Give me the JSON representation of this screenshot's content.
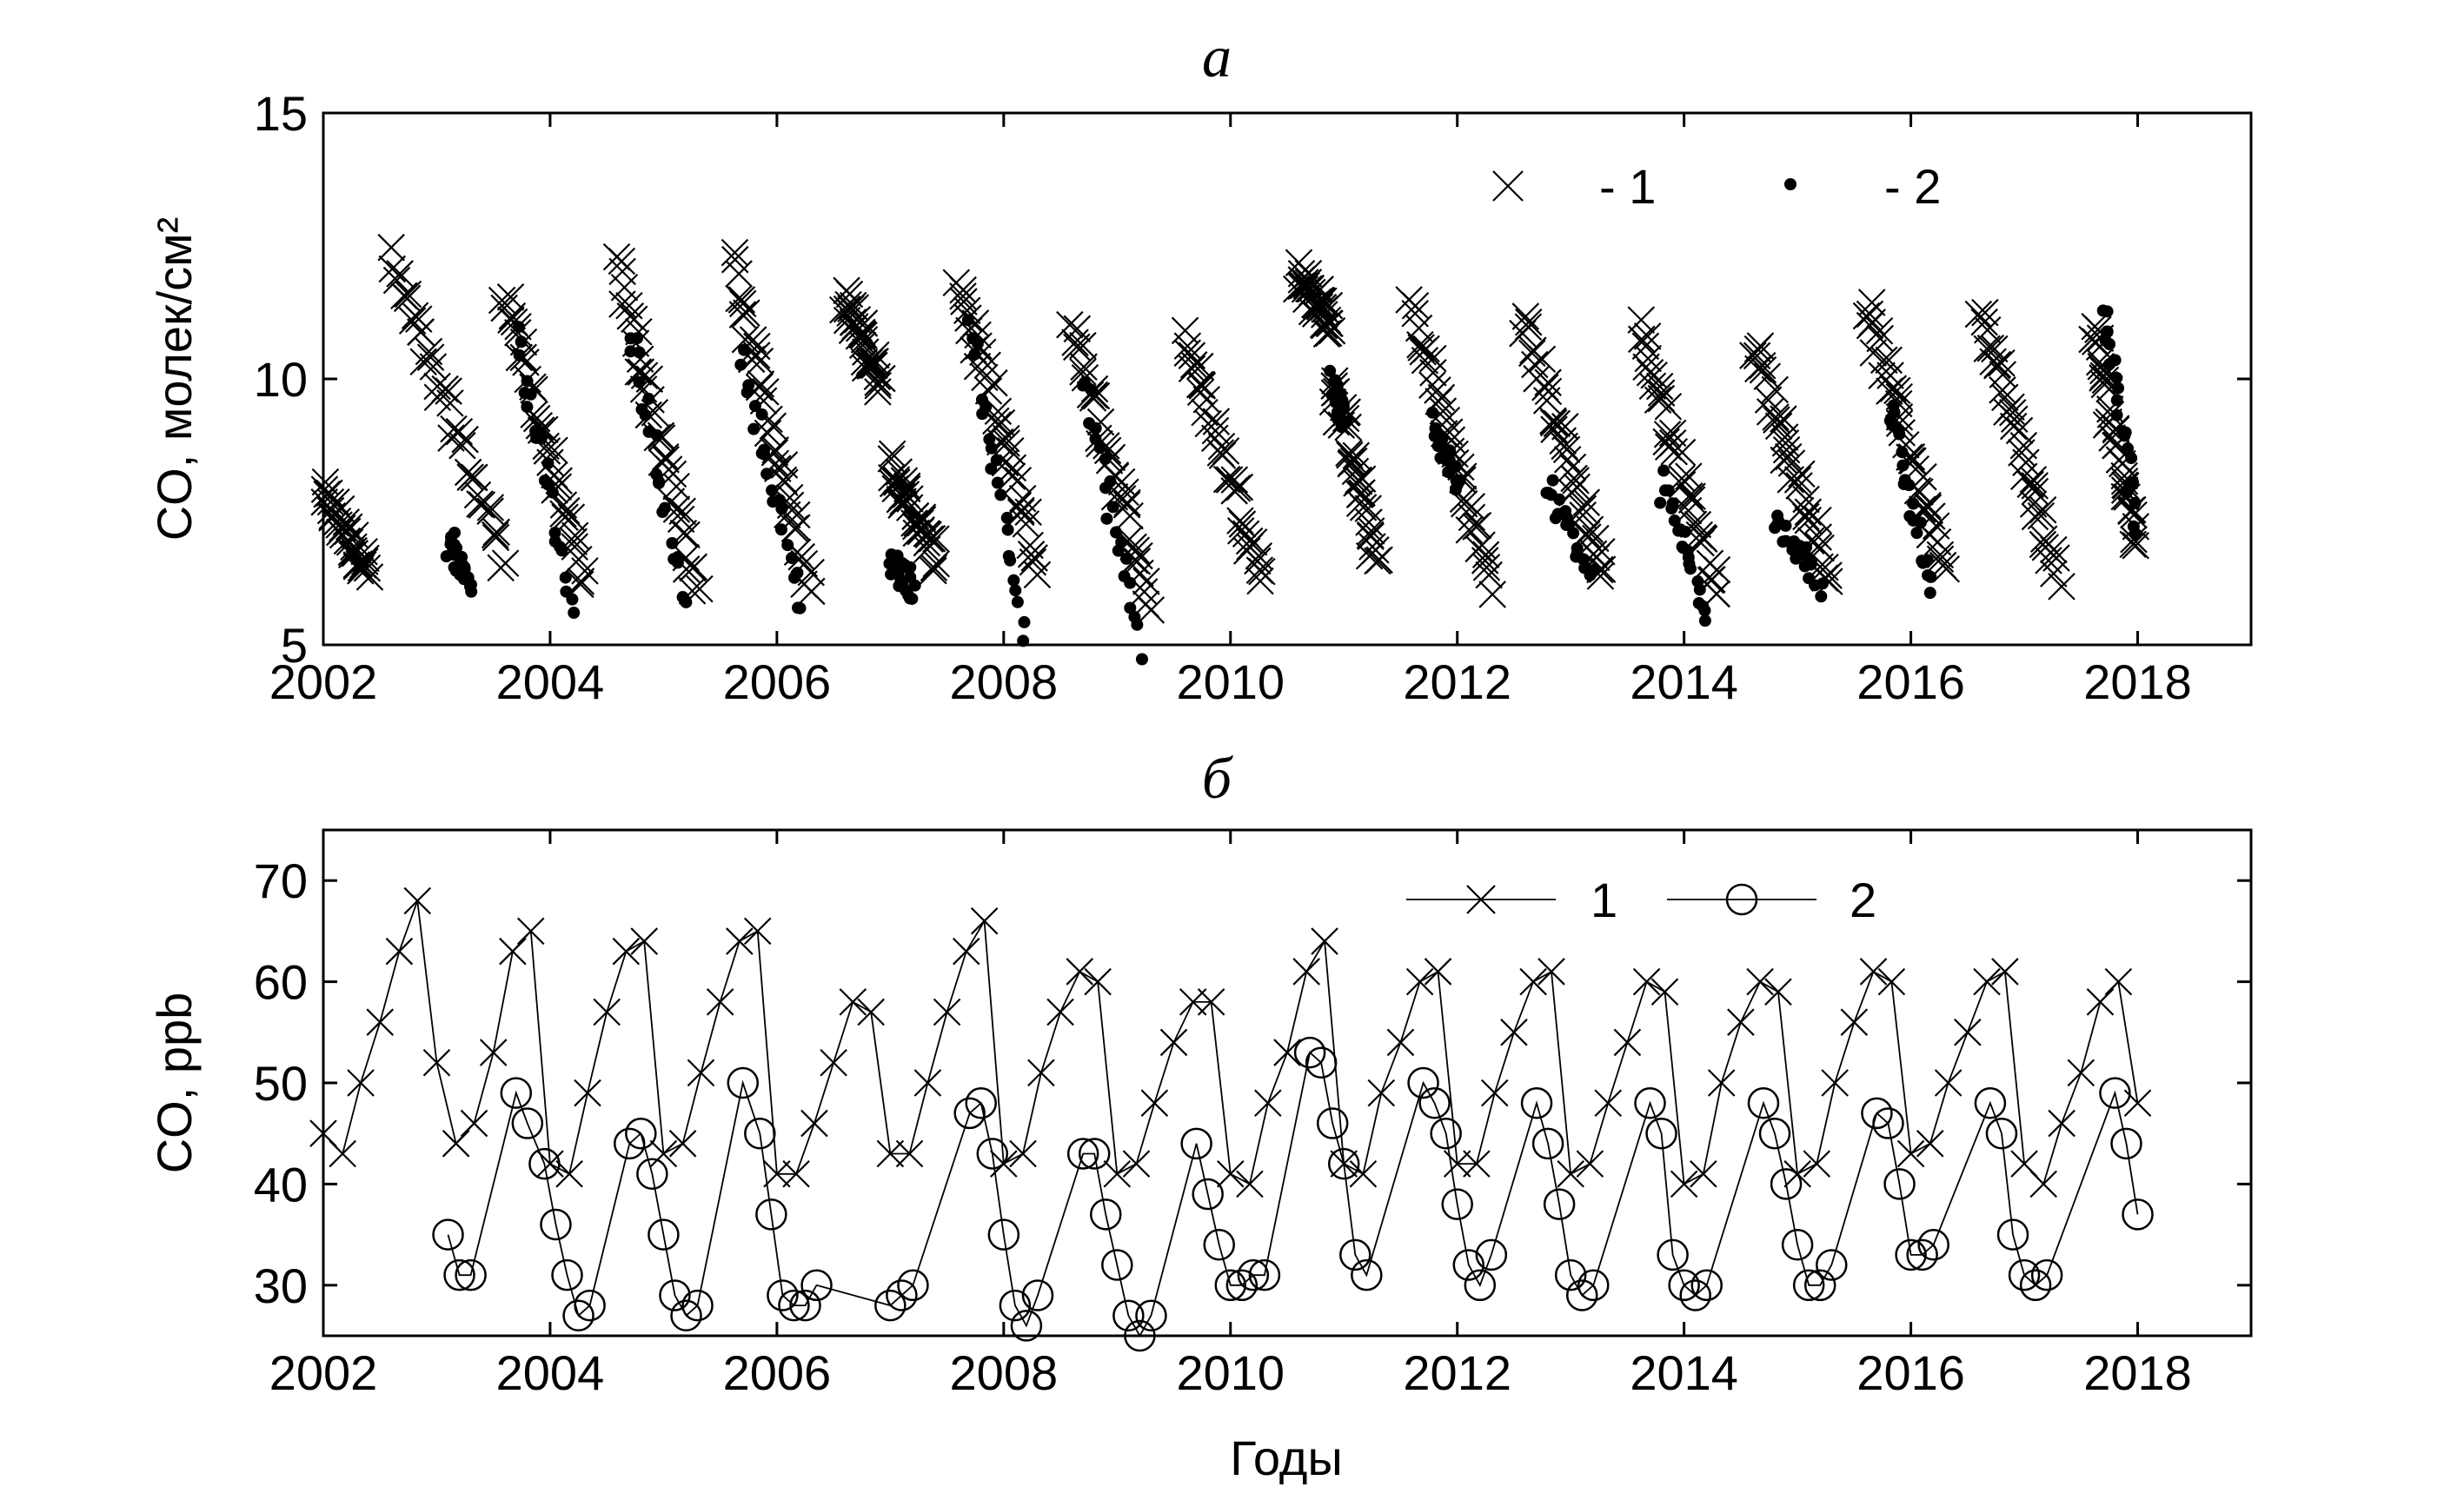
{
  "chart_data": [
    {
      "panel": "a",
      "type": "scatter",
      "title": "а",
      "xlabel": "",
      "ylabel": "CO, молек/см²",
      "xlim": [
        2002,
        2019
      ],
      "ylim": [
        5,
        15
      ],
      "xticks": [
        2002,
        2004,
        2006,
        2008,
        2010,
        2012,
        2014,
        2016,
        2018
      ],
      "yticks": [
        5,
        10,
        15
      ],
      "legend": {
        "placement": "top-right",
        "entries": [
          "- 1",
          "- 2"
        ]
      },
      "series": [
        {
          "name": "1",
          "marker": "x",
          "clusters": [
            {
              "x0": 2002.0,
              "x1": 2002.4,
              "y0": 7.8,
              "y1": 6.4
            },
            {
              "x0": 2002.6,
              "x1": 2003.6,
              "y0": 12.2,
              "y1": 6.6
            },
            {
              "x0": 2003.6,
              "x1": 2004.3,
              "y0": 11.7,
              "y1": 6.1
            },
            {
              "x0": 2004.6,
              "x1": 2005.3,
              "y0": 12.1,
              "y1": 6.0
            },
            {
              "x0": 2005.6,
              "x1": 2006.3,
              "y0": 12.2,
              "y1": 6.1
            },
            {
              "x0": 2006.6,
              "x1": 2006.9,
              "y0": 11.5,
              "y1": 10.0
            },
            {
              "x0": 2007.0,
              "x1": 2007.4,
              "y0": 8.4,
              "y1": 6.6
            },
            {
              "x0": 2007.6,
              "x1": 2008.3,
              "y0": 11.9,
              "y1": 6.4
            },
            {
              "x0": 2008.6,
              "x1": 2009.3,
              "y0": 11.0,
              "y1": 5.8
            },
            {
              "x0": 2009.6,
              "x1": 2010.3,
              "y0": 10.8,
              "y1": 6.2
            },
            {
              "x0": 2010.6,
              "x1": 2010.9,
              "y0": 12.0,
              "y1": 11.0
            },
            {
              "x0": 2010.9,
              "x1": 2011.3,
              "y0": 10.0,
              "y1": 6.5
            },
            {
              "x0": 2011.6,
              "x1": 2012.3,
              "y0": 11.4,
              "y1": 6.1
            },
            {
              "x0": 2012.6,
              "x1": 2013.3,
              "y0": 11.1,
              "y1": 6.2
            },
            {
              "x0": 2013.6,
              "x1": 2014.3,
              "y0": 11.0,
              "y1": 6.0
            },
            {
              "x0": 2014.6,
              "x1": 2015.3,
              "y0": 10.7,
              "y1": 6.2
            },
            {
              "x0": 2015.6,
              "x1": 2016.3,
              "y0": 11.4,
              "y1": 6.5
            },
            {
              "x0": 2016.6,
              "x1": 2017.3,
              "y0": 11.4,
              "y1": 6.2
            },
            {
              "x0": 2017.6,
              "x1": 2018.0,
              "y0": 11.0,
              "y1": 6.9
            }
          ]
        },
        {
          "name": "2",
          "marker": "dot",
          "clusters": [
            {
              "x0": 2003.1,
              "x1": 2003.3,
              "y0": 7.0,
              "y1": 6.2
            },
            {
              "x0": 2003.7,
              "x1": 2004.2,
              "y0": 11.0,
              "y1": 5.5
            },
            {
              "x0": 2004.7,
              "x1": 2005.2,
              "y0": 11.0,
              "y1": 5.6
            },
            {
              "x0": 2005.7,
              "x1": 2006.2,
              "y0": 10.5,
              "y1": 5.7
            },
            {
              "x0": 2007.0,
              "x1": 2007.2,
              "y0": 6.6,
              "y1": 6.1
            },
            {
              "x0": 2007.7,
              "x1": 2008.2,
              "y0": 11.0,
              "y1": 5.2
            },
            {
              "x0": 2008.7,
              "x1": 2009.2,
              "y0": 10.0,
              "y1": 5.0
            },
            {
              "x0": 2010.9,
              "x1": 2011.0,
              "y0": 10.0,
              "y1": 9.0
            },
            {
              "x0": 2011.8,
              "x1": 2012.0,
              "y0": 9.2,
              "y1": 8.0
            },
            {
              "x0": 2012.8,
              "x1": 2013.2,
              "y0": 8.0,
              "y1": 6.2
            },
            {
              "x0": 2013.8,
              "x1": 2014.2,
              "y0": 8.0,
              "y1": 5.7
            },
            {
              "x0": 2014.8,
              "x1": 2015.2,
              "y0": 7.5,
              "y1": 6.1
            },
            {
              "x0": 2015.8,
              "x1": 2016.2,
              "y0": 9.5,
              "y1": 6.0
            },
            {
              "x0": 2017.7,
              "x1": 2018.0,
              "y0": 11.2,
              "y1": 7.2
            }
          ]
        }
      ]
    },
    {
      "panel": "b",
      "type": "line",
      "title": "б",
      "xlabel": "Годы",
      "ylabel": "CO, ppb",
      "xlim": [
        2002,
        2019
      ],
      "ylim": [
        25,
        75
      ],
      "xticks": [
        2002,
        2004,
        2006,
        2008,
        2010,
        2012,
        2014,
        2016,
        2018
      ],
      "yticks": [
        30,
        40,
        50,
        60,
        70
      ],
      "legend": {
        "placement": "top-right",
        "entries": [
          "1",
          "2"
        ]
      },
      "series": [
        {
          "name": "1",
          "marker": "x",
          "x": [
            2002.0,
            2002.17,
            2002.33,
            2002.5,
            2002.67,
            2002.83,
            2003.0,
            2003.17,
            2003.33,
            2003.5,
            2003.67,
            2003.83,
            2004.0,
            2004.17,
            2004.33,
            2004.5,
            2004.67,
            2004.83,
            2005.0,
            2005.17,
            2005.33,
            2005.5,
            2005.67,
            2005.83,
            2006.0,
            2006.17,
            2006.33,
            2006.5,
            2006.67,
            2006.83,
            2007.0,
            2007.17,
            2007.33,
            2007.5,
            2007.67,
            2007.83,
            2008.0,
            2008.17,
            2008.33,
            2008.5,
            2008.67,
            2008.83,
            2009.0,
            2009.17,
            2009.33,
            2009.5,
            2009.67,
            2009.83,
            2010.0,
            2010.17,
            2010.33,
            2010.5,
            2010.67,
            2010.83,
            2011.0,
            2011.17,
            2011.33,
            2011.5,
            2011.67,
            2011.83,
            2012.0,
            2012.17,
            2012.33,
            2012.5,
            2012.67,
            2012.83,
            2013.0,
            2013.17,
            2013.33,
            2013.5,
            2013.67,
            2013.83,
            2014.0,
            2014.17,
            2014.33,
            2014.5,
            2014.67,
            2014.83,
            2015.0,
            2015.17,
            2015.33,
            2015.5,
            2015.67,
            2015.83,
            2016.0,
            2016.17,
            2016.33,
            2016.5,
            2016.67,
            2016.83,
            2017.0,
            2017.17,
            2017.33,
            2017.5,
            2017.67,
            2017.83,
            2018.0
          ],
          "y": [
            45,
            43,
            50,
            56,
            63,
            68,
            52,
            44,
            46,
            53,
            63,
            65,
            42,
            41,
            49,
            57,
            63,
            64,
            43,
            44,
            51,
            58,
            64,
            65,
            41,
            41,
            46,
            52,
            58,
            57,
            43,
            43,
            50,
            57,
            63,
            66,
            42,
            43,
            51,
            57,
            61,
            60,
            41,
            42,
            48,
            54,
            58,
            58,
            41,
            40,
            48,
            53,
            61,
            64,
            42,
            41,
            49,
            54,
            60,
            61,
            42,
            42,
            49,
            55,
            60,
            61,
            41,
            42,
            48,
            54,
            60,
            59,
            40,
            41,
            50,
            56,
            60,
            59,
            41,
            42,
            50,
            56,
            61,
            60,
            43,
            44,
            50,
            55,
            60,
            61,
            42,
            40,
            46,
            51,
            58,
            60,
            48
          ]
        },
        {
          "name": "2",
          "marker": "circle",
          "x": [
            2003.1,
            2003.2,
            2003.3,
            2003.7,
            2003.8,
            2003.95,
            2004.05,
            2004.15,
            2004.25,
            2004.35,
            2004.7,
            2004.8,
            2004.9,
            2005.0,
            2005.1,
            2005.2,
            2005.3,
            2005.7,
            2005.85,
            2005.95,
            2006.05,
            2006.15,
            2006.25,
            2006.35,
            2007.0,
            2007.1,
            2007.2,
            2007.7,
            2007.8,
            2007.9,
            2008.0,
            2008.1,
            2008.2,
            2008.3,
            2008.7,
            2008.8,
            2008.9,
            2009.0,
            2009.1,
            2009.2,
            2009.3,
            2009.7,
            2009.8,
            2009.9,
            2010.0,
            2010.1,
            2010.2,
            2010.3,
            2010.7,
            2010.8,
            2010.9,
            2011.0,
            2011.1,
            2011.2,
            2011.7,
            2011.8,
            2011.9,
            2012.0,
            2012.1,
            2012.2,
            2012.3,
            2012.7,
            2012.8,
            2012.9,
            2013.0,
            2013.1,
            2013.2,
            2013.7,
            2013.8,
            2013.9,
            2014.0,
            2014.1,
            2014.2,
            2014.7,
            2014.8,
            2014.9,
            2015.0,
            2015.1,
            2015.2,
            2015.3,
            2015.7,
            2015.8,
            2015.9,
            2016.0,
            2016.1,
            2016.2,
            2016.7,
            2016.8,
            2016.9,
            2017.0,
            2017.1,
            2017.2,
            2017.8,
            2017.9,
            2018.0
          ],
          "y": [
            35,
            31,
            31,
            49,
            46,
            42,
            36,
            31,
            27,
            28,
            44,
            45,
            41,
            35,
            29,
            27,
            28,
            50,
            45,
            37,
            29,
            28,
            28,
            30,
            28,
            29,
            30,
            47,
            48,
            43,
            35,
            28,
            26,
            29,
            43,
            43,
            37,
            32,
            27,
            25,
            27,
            44,
            39,
            34,
            30,
            30,
            31,
            31,
            53,
            52,
            46,
            42,
            33,
            31,
            50,
            48,
            45,
            38,
            32,
            30,
            33,
            48,
            44,
            38,
            31,
            29,
            30,
            48,
            45,
            33,
            30,
            29,
            30,
            48,
            45,
            40,
            34,
            30,
            30,
            32,
            47,
            46,
            40,
            33,
            33,
            34,
            48,
            45,
            35,
            31,
            30,
            31,
            49,
            44,
            37
          ]
        }
      ]
    }
  ]
}
